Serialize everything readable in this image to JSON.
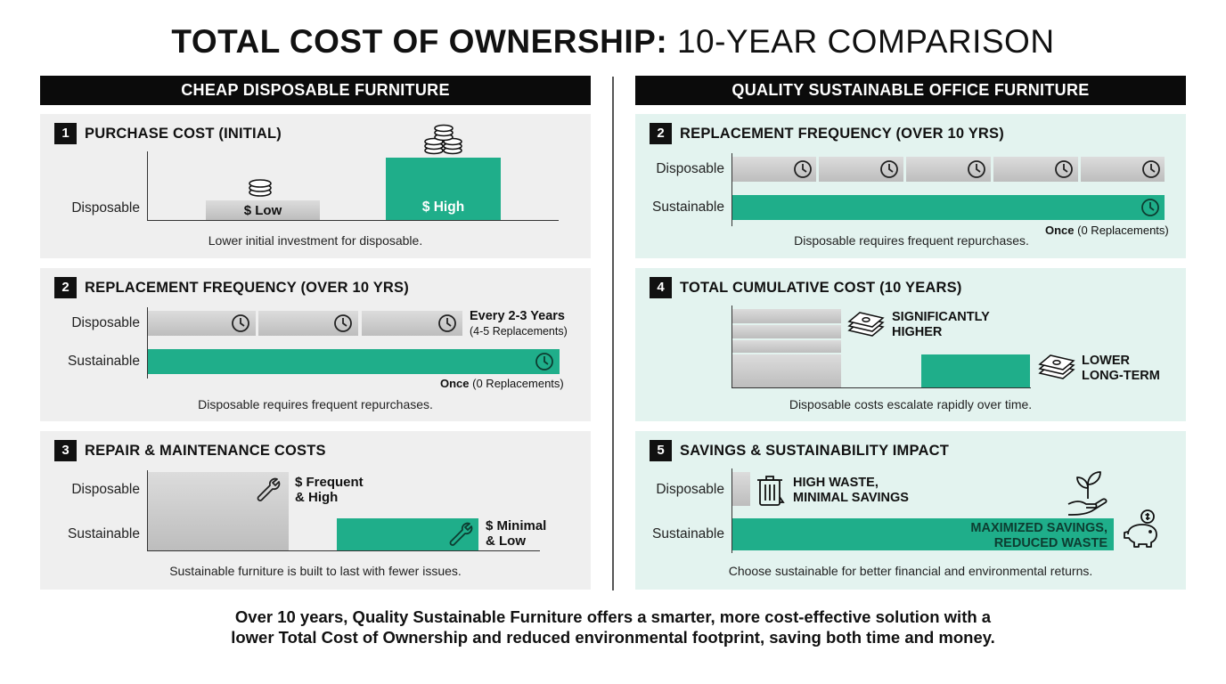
{
  "title": {
    "bold": "TOTAL COST OF OWNERSHIP:",
    "light": "10-YEAR COMPARISON"
  },
  "left_header": "CHEAP DISPOSABLE FURNITURE",
  "right_header": "QUALITY SUSTAINABLE OFFICE FURNITURE",
  "left": {
    "p1": {
      "num": "1",
      "title": "PURCHASE COST (INITIAL)",
      "row_label": "Disposable",
      "bar_low": "$ Low",
      "bar_high": "$ High",
      "caption": "Lower initial investment for disposable."
    },
    "p2": {
      "num": "2",
      "title": "REPLACEMENT FREQUENCY (OVER 10 YRS)",
      "label_a": "Disposable",
      "label_b": "Sustainable",
      "note_main": "Every 2-3 Years",
      "note_sub": "(4-5 Replacements)",
      "once": "Once",
      "once_sub": "(0 Replacements)",
      "caption": "Disposable requires frequent repurchases."
    },
    "p3": {
      "num": "3",
      "title": "REPAIR & MAINTENANCE COSTS",
      "label_a": "Disposable",
      "label_b": "Sustainable",
      "note_a1": "$ Frequent",
      "note_a2": "& High",
      "note_b1": "$ Minimal",
      "note_b2": "& Low",
      "caption": "Sustainable furniture is built to last with fewer issues."
    }
  },
  "right": {
    "p2": {
      "num": "2",
      "title": "REPLACEMENT FREQUENCY (OVER 10 YRS)",
      "label_a": "Disposable",
      "label_b": "Sustainable",
      "once": "Once",
      "once_sub": "(0 Replacements)",
      "caption": "Disposable requires frequent repurchases."
    },
    "p4": {
      "num": "4",
      "title": "TOTAL CUMULATIVE COST (10 YEARS)",
      "note_a1": "SIGNIFICANTLY",
      "note_a2": "HIGHER",
      "note_b1": "LOWER",
      "note_b2": "LONG-TERM",
      "caption": "Disposable costs escalate rapidly over time."
    },
    "p5": {
      "num": "5",
      "title": "SAVINGS & SUSTAINABILITY IMPACT",
      "label_a": "Disposable",
      "label_b": "Sustainable",
      "note_a1": "HIGH WASTE,",
      "note_a2": "MINIMAL SAVINGS",
      "note_b1": "MAXIMIZED SAVINGS,",
      "note_b2": "REDUCED WASTE",
      "caption": "Choose sustainable for better financial and environmental returns."
    }
  },
  "footer": {
    "line1": "Over 10 years, Quality Sustainable Furniture offers a smarter, more cost-effective solution with a",
    "line2": "lower Total Cost of Ownership and reduced environmental footprint, saving both time and money."
  },
  "colors": {
    "teal": "#1fae8a",
    "gray": "#cccccc",
    "panel_gray": "#efefef",
    "panel_teal": "#e3f3ef",
    "header": "#0b0b0b"
  },
  "icons": [
    "coins-icon",
    "coin-stack-icon",
    "clock-icon",
    "wrench-icon",
    "cash-stack-icon",
    "trash-icon",
    "plant-hand-icon",
    "piggy-bank-icon"
  ]
}
